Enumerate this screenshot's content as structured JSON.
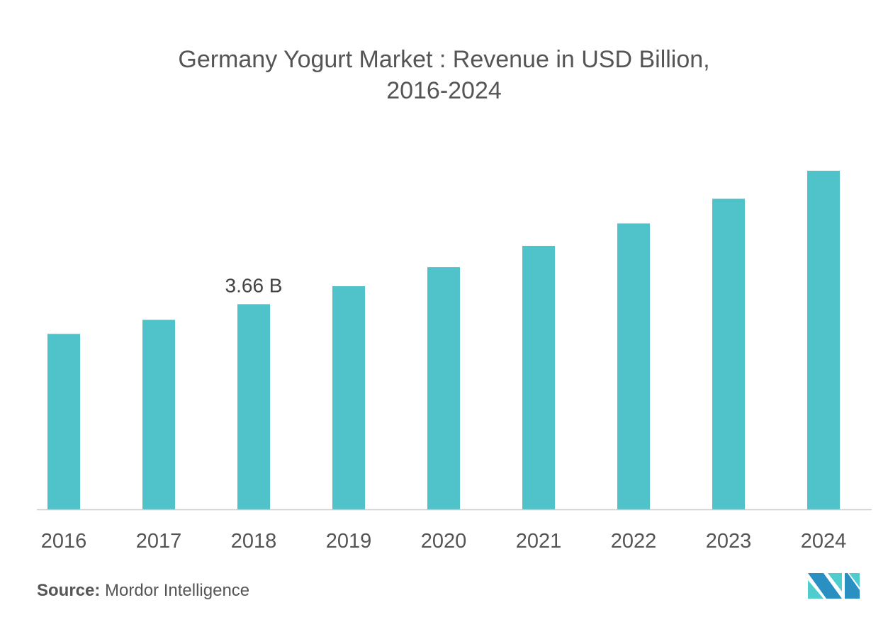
{
  "chart_data": {
    "type": "bar",
    "title": "Germany Yogurt Market : Revenue in USD Billion,",
    "subtitle": "2016-2024",
    "categories": [
      "2016",
      "2017",
      "2018",
      "2019",
      "2020",
      "2021",
      "2022",
      "2023",
      "2024"
    ],
    "values": [
      3.13,
      3.38,
      3.66,
      3.98,
      4.32,
      4.7,
      5.1,
      5.54,
      6.04
    ],
    "unit": "USD Billion",
    "annotations": [
      {
        "category": "2018",
        "text": "3.66 B"
      }
    ],
    "ylim": [
      0,
      6.04
    ],
    "grid": false,
    "bar_color": "#4fc3c9",
    "xlabel": "",
    "ylabel": ""
  },
  "source": {
    "label": "Source:",
    "text": "Mordor Intelligence"
  },
  "logo": {
    "colors": [
      "#2a8fc1",
      "#4fcccd"
    ]
  }
}
